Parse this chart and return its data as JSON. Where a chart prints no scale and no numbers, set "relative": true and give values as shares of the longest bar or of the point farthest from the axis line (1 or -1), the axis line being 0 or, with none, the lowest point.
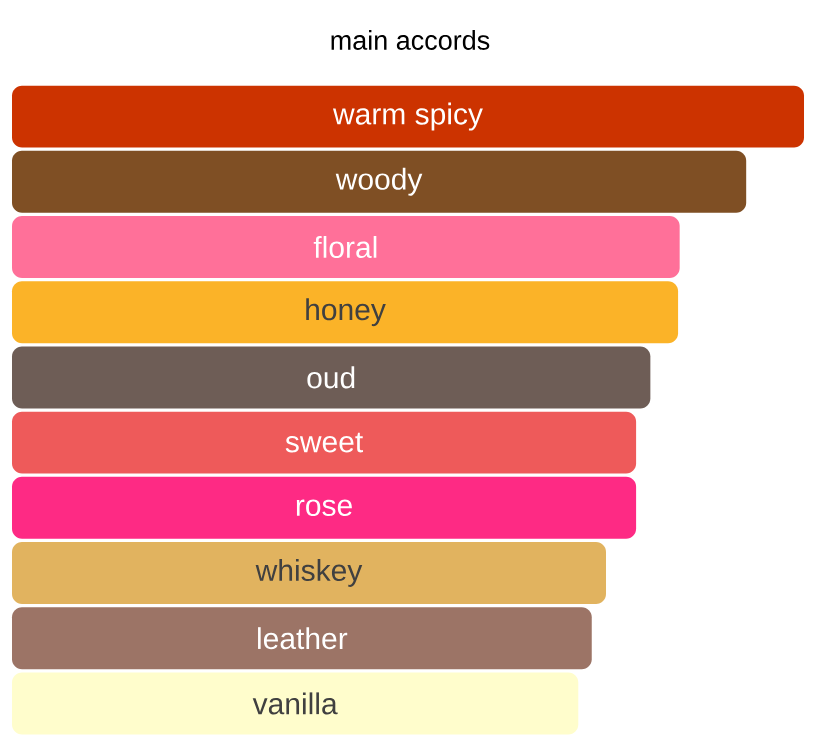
{
  "chart_data": {
    "type": "bar",
    "title": "main accords",
    "orientation": "horizontal",
    "relative": true,
    "categories": [
      "warm spicy",
      "woody",
      "floral",
      "honey",
      "oud",
      "sweet",
      "rose",
      "whiskey",
      "leather",
      "vanilla"
    ],
    "values": [
      1,
      0.927,
      0.843,
      0.841,
      0.806,
      0.788,
      0.788,
      0.75,
      0.732,
      0.715
    ],
    "colors": [
      "#cc3300",
      "#7f4f24",
      "#ff7099",
      "#fbb328",
      "#6e5d56",
      "#ee5a5a",
      "#fe2a84",
      "#e1b35f",
      "#9c7466",
      "#fffdcc"
    ]
  }
}
